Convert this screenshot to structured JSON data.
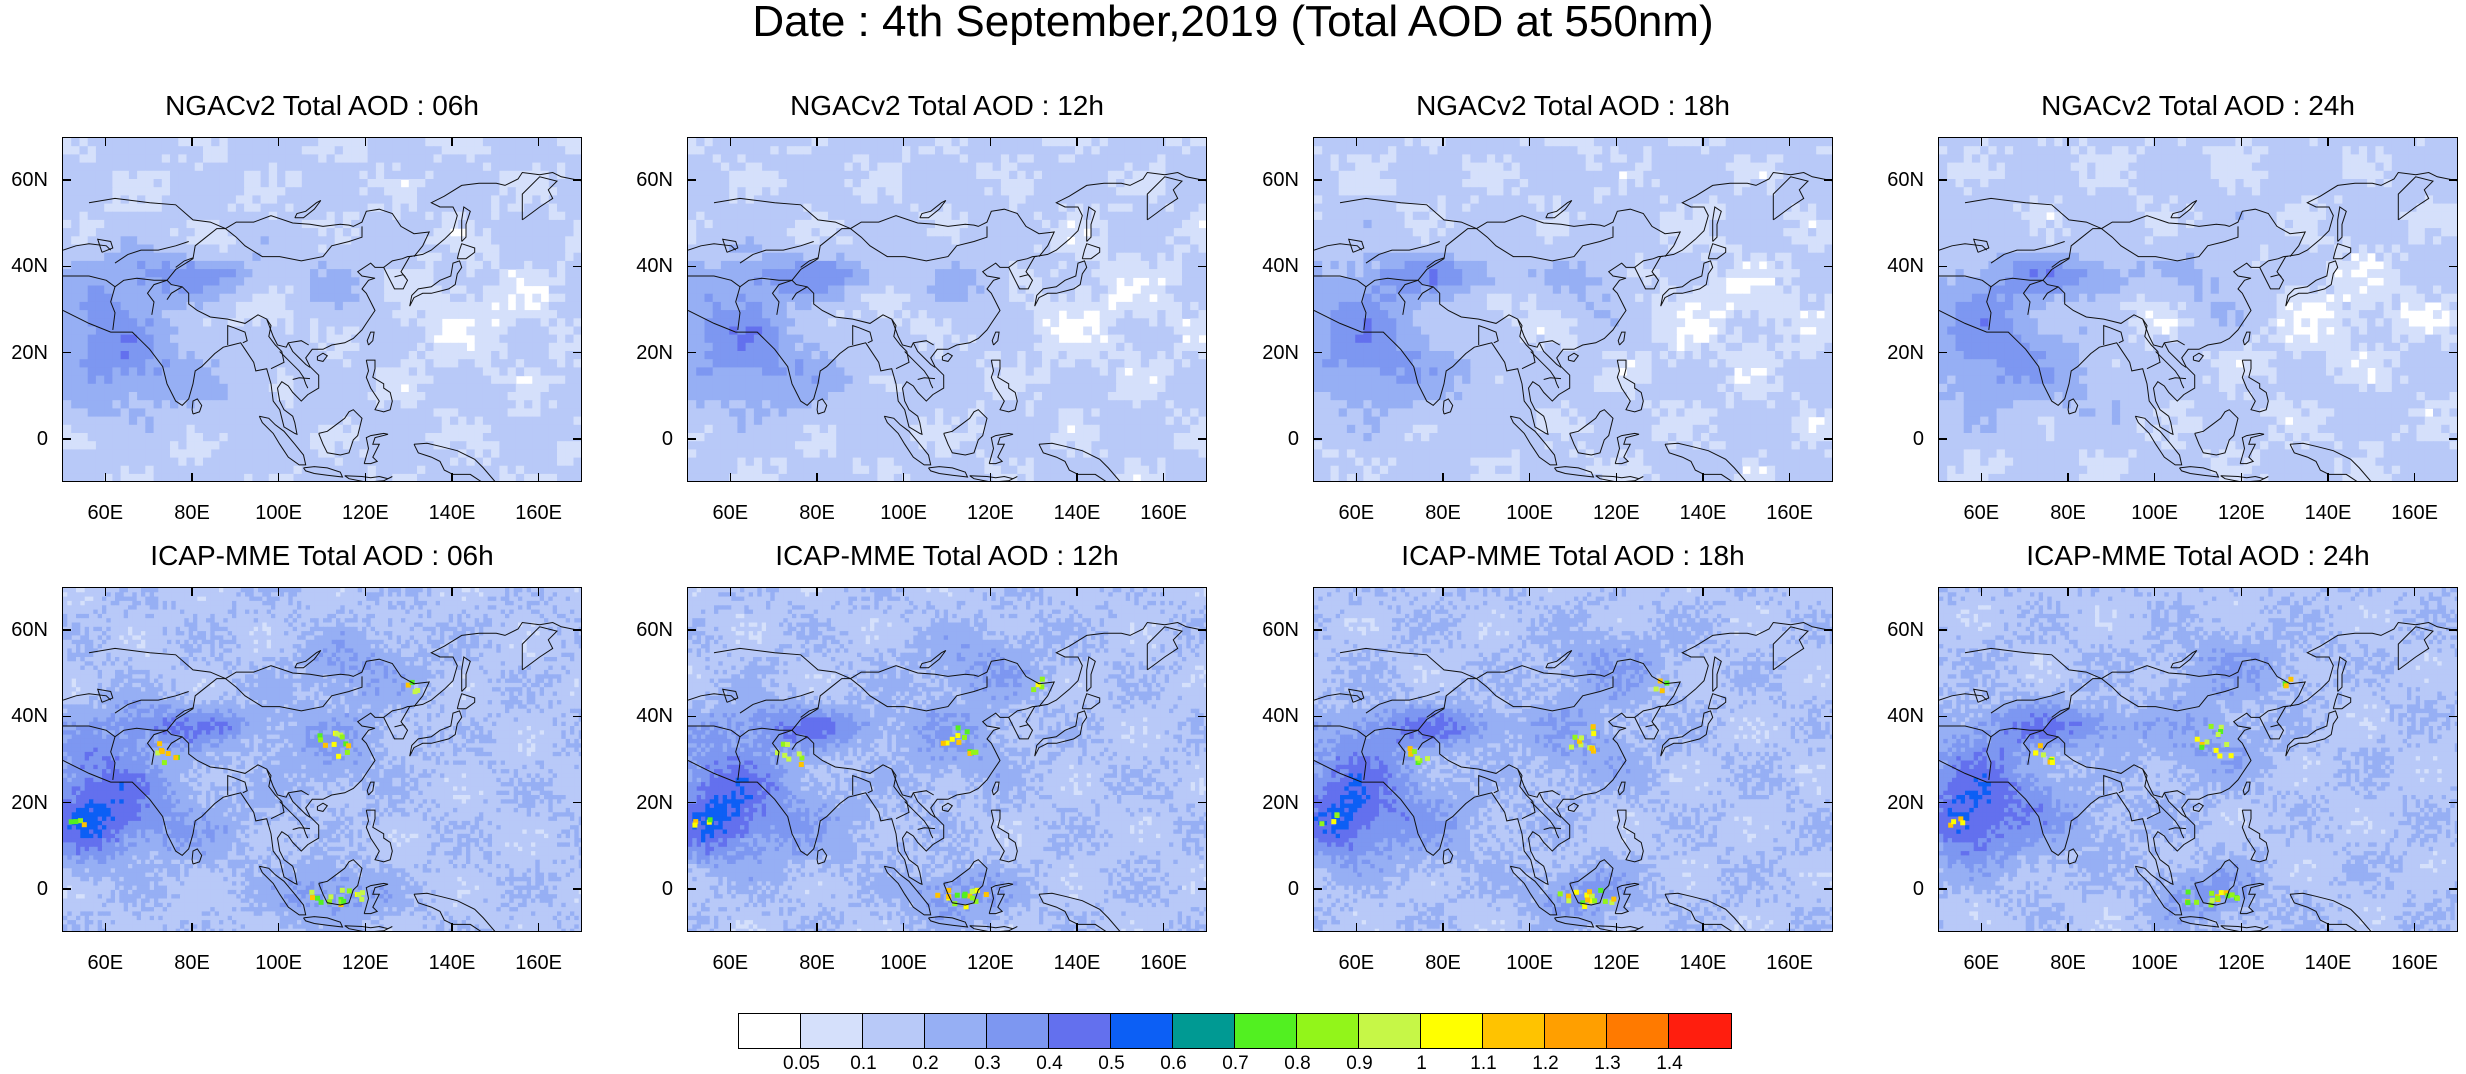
{
  "title": "Date : 4th September,2019 (Total AOD at 550nm)",
  "panels": [
    {
      "title": "NGACv2 Total AOD : 06h",
      "model": "NGACv2"
    },
    {
      "title": "NGACv2 Total AOD : 12h",
      "model": "NGACv2"
    },
    {
      "title": "NGACv2 Total AOD : 18h",
      "model": "NGACv2"
    },
    {
      "title": "NGACv2 Total AOD : 24h",
      "model": "NGACv2"
    },
    {
      "title": "ICAP-MME Total AOD : 06h",
      "model": "ICAP-MME"
    },
    {
      "title": "ICAP-MME Total AOD : 12h",
      "model": "ICAP-MME"
    },
    {
      "title": "ICAP-MME Total AOD : 18h",
      "model": "ICAP-MME"
    },
    {
      "title": "ICAP-MME Total AOD : 24h",
      "model": "ICAP-MME"
    }
  ],
  "lat_ticks": [
    {
      "value": 60,
      "label": "60N"
    },
    {
      "value": 40,
      "label": "40N"
    },
    {
      "value": 20,
      "label": "20N"
    },
    {
      "value": 0,
      "label": "0"
    }
  ],
  "lon_ticks": [
    {
      "value": 60,
      "label": "60E"
    },
    {
      "value": 80,
      "label": "80E"
    },
    {
      "value": 100,
      "label": "100E"
    },
    {
      "value": 120,
      "label": "120E"
    },
    {
      "value": 140,
      "label": "140E"
    },
    {
      "value": 160,
      "label": "160E"
    }
  ],
  "extent": {
    "lon_min": 50,
    "lon_max": 170,
    "lat_min": -10,
    "lat_max": 70
  },
  "colorbar": {
    "colors": [
      "#ffffff",
      "#d5e0fb",
      "#b8c9f8",
      "#96aff4",
      "#7d97f1",
      "#6370ee",
      "#0c5ff5",
      "#009a93",
      "#52f021",
      "#92f51a",
      "#c6f747",
      "#ffff00",
      "#ffc300",
      "#ff9f00",
      "#ff7a00",
      "#ff1e0e"
    ],
    "labels": [
      "0.05",
      "0.1",
      "0.2",
      "0.3",
      "0.4",
      "0.5",
      "0.6",
      "0.7",
      "0.8",
      "0.9",
      "1",
      "1.1",
      "1.2",
      "1.3",
      "1.4"
    ]
  }
}
